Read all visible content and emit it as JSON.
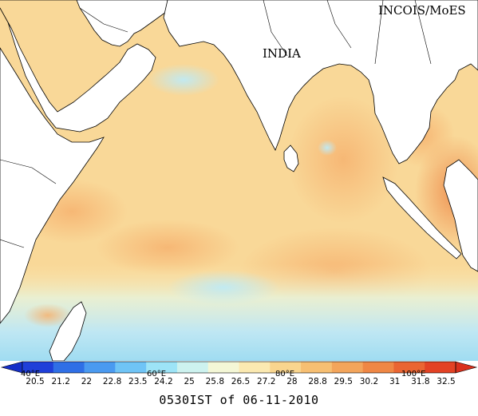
{
  "map": {
    "country_label": "INDIA",
    "credit": "INCOIS/MoES"
  },
  "colorbar": {
    "ticks": [
      "20.5",
      "21.2",
      "22",
      "22.8",
      "23.5",
      "24.2",
      "25",
      "25.8",
      "26.5",
      "27.2",
      "28",
      "28.8",
      "29.5",
      "30.2",
      "31",
      "31.8",
      "32.5"
    ],
    "longitude_labels": [
      "40°E",
      "60°E",
      "80°E",
      "100°E"
    ],
    "colors": [
      "#1f3fd9",
      "#2f6fe6",
      "#4a9af0",
      "#6fc4f6",
      "#9de4f7",
      "#cdf2ef",
      "#f4f7d6",
      "#fbe9b1",
      "#f9d58e",
      "#f7bf72",
      "#f3a55b",
      "#ef8744",
      "#ea6532",
      "#e34224"
    ]
  },
  "timestamp": "0530IST of 06-11-2010"
}
